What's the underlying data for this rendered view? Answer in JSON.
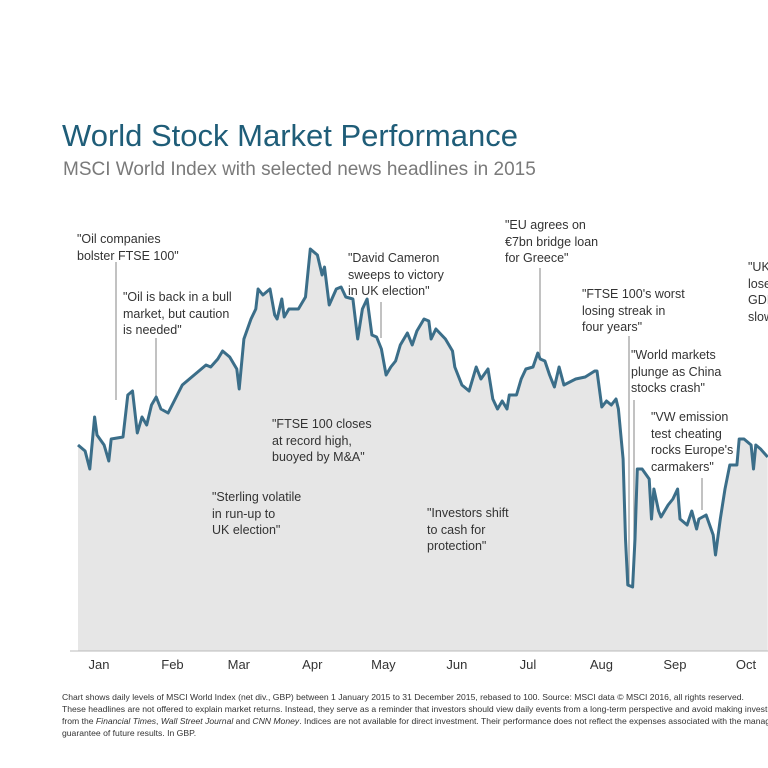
{
  "title": "World Stock Market Performance",
  "subtitle": "MSCI World Index with selected news headlines in 2015",
  "colors": {
    "title": "#1f5d78",
    "line": "#3b6e89",
    "fill": "#e6e6e6",
    "callout": "#9a9a9a"
  },
  "chart_data": {
    "type": "area",
    "title": "World Stock Market Performance",
    "subtitle": "MSCI World Index with selected news headlines in 2015",
    "xlabel": "",
    "ylabel": "",
    "x_ticks": [
      "Jan",
      "Feb",
      "Mar",
      "Apr",
      "May",
      "Jun",
      "Jul",
      "Aug",
      "Sep",
      "Oct"
    ],
    "grid": false,
    "y_axis_shown": false,
    "base_value": 100,
    "points": [
      [
        "2015-01-01",
        100.5
      ],
      [
        "2015-01-04",
        100.2
      ],
      [
        "2015-01-06",
        99.3
      ],
      [
        "2015-01-08",
        101.9
      ],
      [
        "2015-01-09",
        101.0
      ],
      [
        "2015-01-12",
        100.5
      ],
      [
        "2015-01-14",
        99.7
      ],
      [
        "2015-01-15",
        100.8
      ],
      [
        "2015-01-20",
        100.9
      ],
      [
        "2015-01-22",
        103.0
      ],
      [
        "2015-01-24",
        103.2
      ],
      [
        "2015-01-26",
        101.1
      ],
      [
        "2015-01-28",
        101.9
      ],
      [
        "2015-01-30",
        101.5
      ],
      [
        "2015-02-01",
        102.5
      ],
      [
        "2015-02-03",
        102.9
      ],
      [
        "2015-02-05",
        102.3
      ],
      [
        "2015-02-08",
        102.1
      ],
      [
        "2015-02-11",
        102.8
      ],
      [
        "2015-02-14",
        103.5
      ],
      [
        "2015-02-17",
        103.8
      ],
      [
        "2015-02-21",
        104.2
      ],
      [
        "2015-02-24",
        104.5
      ],
      [
        "2015-02-26",
        104.4
      ],
      [
        "2015-03-01",
        104.8
      ],
      [
        "2015-03-03",
        105.2
      ],
      [
        "2015-03-06",
        104.9
      ],
      [
        "2015-03-09",
        104.3
      ],
      [
        "2015-03-10",
        103.3
      ],
      [
        "2015-03-12",
        105.8
      ],
      [
        "2015-03-15",
        106.8
      ],
      [
        "2015-03-17",
        107.3
      ],
      [
        "2015-03-18",
        108.3
      ],
      [
        "2015-03-20",
        108.0
      ],
      [
        "2015-03-23",
        108.3
      ],
      [
        "2015-03-25",
        107.0
      ],
      [
        "2015-03-26",
        106.8
      ],
      [
        "2015-03-28",
        107.8
      ],
      [
        "2015-03-29",
        106.9
      ],
      [
        "2015-03-31",
        107.3
      ],
      [
        "2015-04-04",
        107.3
      ],
      [
        "2015-04-07",
        107.9
      ],
      [
        "2015-04-09",
        110.3
      ],
      [
        "2015-04-12",
        110.0
      ],
      [
        "2015-04-14",
        109.0
      ],
      [
        "2015-04-15",
        109.4
      ],
      [
        "2015-04-17",
        107.5
      ],
      [
        "2015-04-20",
        108.3
      ],
      [
        "2015-04-22",
        108.4
      ],
      [
        "2015-04-24",
        107.9
      ],
      [
        "2015-04-27",
        107.8
      ],
      [
        "2015-04-29",
        105.8
      ],
      [
        "2015-05-01",
        107.3
      ],
      [
        "2015-05-03",
        107.8
      ],
      [
        "2015-05-05",
        106.0
      ],
      [
        "2015-05-07",
        105.9
      ],
      [
        "2015-05-09",
        105.3
      ],
      [
        "2015-05-11",
        104.0
      ],
      [
        "2015-05-13",
        104.4
      ],
      [
        "2015-05-15",
        104.7
      ],
      [
        "2015-05-17",
        105.5
      ],
      [
        "2015-05-20",
        106.1
      ],
      [
        "2015-05-22",
        105.5
      ],
      [
        "2015-05-24",
        106.2
      ],
      [
        "2015-05-27",
        106.8
      ],
      [
        "2015-05-29",
        106.7
      ],
      [
        "2015-05-30",
        105.8
      ],
      [
        "2015-06-01",
        106.3
      ],
      [
        "2015-06-05",
        105.8
      ],
      [
        "2015-06-08",
        105.2
      ],
      [
        "2015-06-09",
        104.4
      ],
      [
        "2015-06-12",
        103.5
      ],
      [
        "2015-06-15",
        103.2
      ],
      [
        "2015-06-18",
        104.4
      ],
      [
        "2015-06-20",
        103.8
      ],
      [
        "2015-06-23",
        104.3
      ],
      [
        "2015-06-25",
        102.8
      ],
      [
        "2015-06-27",
        102.3
      ],
      [
        "2015-06-29",
        102.7
      ],
      [
        "2015-07-01",
        102.3
      ],
      [
        "2015-07-02",
        103.0
      ],
      [
        "2015-07-05",
        103.0
      ],
      [
        "2015-07-07",
        103.8
      ],
      [
        "2015-07-09",
        104.3
      ],
      [
        "2015-07-12",
        104.4
      ],
      [
        "2015-07-14",
        105.1
      ],
      [
        "2015-07-15",
        104.8
      ],
      [
        "2015-07-17",
        104.7
      ],
      [
        "2015-07-19",
        104.0
      ],
      [
        "2015-07-21",
        103.4
      ],
      [
        "2015-07-23",
        104.4
      ],
      [
        "2015-07-25",
        103.5
      ],
      [
        "2015-07-30",
        103.8
      ],
      [
        "2015-08-03",
        103.9
      ],
      [
        "2015-08-07",
        104.2
      ],
      [
        "2015-08-08",
        104.2
      ],
      [
        "2015-08-10",
        102.4
      ],
      [
        "2015-08-12",
        102.7
      ],
      [
        "2015-08-14",
        102.5
      ],
      [
        "2015-08-16",
        102.8
      ],
      [
        "2015-08-17",
        102.3
      ],
      [
        "2015-08-19",
        99.8
      ],
      [
        "2015-08-20",
        95.8
      ],
      [
        "2015-08-21",
        93.5
      ],
      [
        "2015-08-23",
        93.4
      ],
      [
        "2015-08-24",
        95.8
      ],
      [
        "2015-08-25",
        99.3
      ],
      [
        "2015-08-27",
        99.3
      ],
      [
        "2015-08-30",
        98.8
      ],
      [
        "2015-08-31",
        96.8
      ],
      [
        "2015-09-01",
        98.3
      ],
      [
        "2015-09-03",
        97.2
      ],
      [
        "2015-09-04",
        96.9
      ],
      [
        "2015-09-07",
        97.5
      ],
      [
        "2015-09-09",
        97.8
      ],
      [
        "2015-09-11",
        98.3
      ],
      [
        "2015-09-12",
        96.8
      ],
      [
        "2015-09-15",
        96.5
      ],
      [
        "2015-09-17",
        97.2
      ],
      [
        "2015-09-19",
        96.3
      ],
      [
        "2015-09-20",
        96.8
      ],
      [
        "2015-09-23",
        97.0
      ],
      [
        "2015-09-26",
        96.0
      ],
      [
        "2015-09-27",
        95.0
      ],
      [
        "2015-09-29",
        96.8
      ],
      [
        "2015-10-01",
        98.3
      ],
      [
        "2015-10-03",
        99.5
      ],
      [
        "2015-10-06",
        99.5
      ],
      [
        "2015-10-07",
        100.8
      ],
      [
        "2015-10-09",
        100.8
      ],
      [
        "2015-10-12",
        100.5
      ],
      [
        "2015-10-13",
        99.3
      ],
      [
        "2015-10-14",
        100.5
      ],
      [
        "2015-10-16",
        100.3
      ],
      [
        "2015-10-19",
        99.9
      ]
    ],
    "annotations": [
      {
        "text": "\"Oil companies\nbolster FTSE 100\"",
        "date": "2015-01-16"
      },
      {
        "text": "\"Oil is back in a bull\nmarket, but caution\nis needed\"",
        "date": "2015-02-02"
      },
      {
        "text": "\"Sterling volatile\nin run-up to\nUK election\"",
        "date": "2015-03-12"
      },
      {
        "text": "\"FTSE 100 closes\nat record high,\nbuoyed by M&A\"",
        "date": "2015-04-09"
      },
      {
        "text": "\"David Cameron\nsweeps to victory\nin UK election\"",
        "date": "2015-05-08"
      },
      {
        "text": "\"Investors shift\nto cash for\nprotection\"",
        "date": "2015-06-12"
      },
      {
        "text": "\"EU agrees on\n€7bn bridge loan\nfor Greece\"",
        "date": "2015-07-14"
      },
      {
        "text": "\"FTSE 100's worst\nlosing streak in\nfour years\"",
        "date": "2015-08-21"
      },
      {
        "text": "\"World markets\nplunge as China\nstocks crash\"",
        "date": "2015-08-23"
      },
      {
        "text": "\"VW emission\ntest cheating\nrocks Europe's\ncarmakers\"",
        "date": "2015-09-22"
      },
      {
        "text": "\"UK\nlose\nGDI\nslow",
        "date": ""
      }
    ]
  },
  "footnote": {
    "line1": "Chart shows daily levels of MSCI World Index (net div., GBP) between 1 January 2015 to 31 December 2015, rebased to 100. Source: MSCI data © MSCI 2016, all rights reserved.",
    "line2": "These headlines are not offered to explain market returns. Instead, they serve as a reminder that investors should view daily events from a long-term perspective and avoid making investme",
    "line3_a": "from the ",
    "line3_ft": "Financial Times",
    "line3_b": ", ",
    "line3_wsj": "Wall Street Journal",
    "line3_c": " and ",
    "line3_cnn": "CNN Money",
    "line3_d": ". Indices are not available for direct investment. Their performance does not reflect the expenses associated with the manage",
    "line4": "guarantee of future results. In GBP."
  }
}
